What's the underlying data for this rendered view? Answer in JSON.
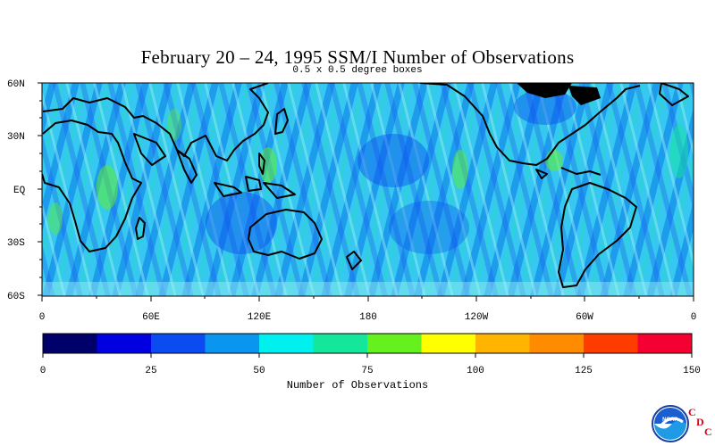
{
  "title": "February 20 – 24, 1995 SSM/I Number of Observations",
  "subtitle": "0.5 x 0.5 degree boxes",
  "map": {
    "lat_labels": [
      "60N",
      "30N",
      "EQ",
      "30S",
      "60S"
    ],
    "lon_labels": [
      "0",
      "60E",
      "120E",
      "180",
      "120W",
      "60W",
      "0"
    ],
    "background_color": "#36d6f2",
    "land_outline_color": "#000000"
  },
  "colorbar": {
    "label": "Number of Observations",
    "tick_labels": [
      "0",
      "25",
      "50",
      "75",
      "100",
      "125",
      "150"
    ],
    "colors": [
      "#00006b",
      "#0000e0",
      "#0a4cf0",
      "#0a96f0",
      "#00f0f0",
      "#14e69c",
      "#66f01e",
      "#ffff00",
      "#ffb400",
      "#ff8c00",
      "#ff3c00",
      "#f50032"
    ]
  },
  "chart_data": {
    "type": "heatmap",
    "title": "February 20 – 24, 1995 SSM/I Number of Observations",
    "subtitle": "0.5 x 0.5 degree boxes",
    "colorbar_label": "Number of Observations",
    "value_range": [
      0,
      150
    ],
    "colorbar_ticks": [
      0,
      25,
      50,
      75,
      100,
      125,
      150
    ],
    "lat_range": [
      -60,
      60
    ],
    "lon_range": [
      0,
      360
    ]
  },
  "logo": {
    "agency": "NOAA",
    "letters": [
      "C",
      "D",
      "C"
    ]
  }
}
